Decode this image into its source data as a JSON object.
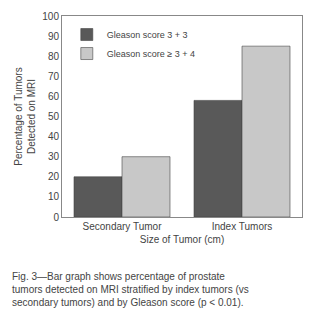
{
  "chart_data": {
    "type": "bar",
    "categories": [
      "Secondary Tumor",
      "Index Tumors"
    ],
    "x_label": "Size of Tumor (cm)",
    "y_label": "Percentage of Tumors\nDetected on MRI",
    "series": [
      {
        "name": "Gleason score 3 + 3",
        "values": [
          20,
          58
        ],
        "color": "#595959"
      },
      {
        "name": "Gleason score ≥ 3 + 4",
        "values": [
          30,
          85
        ],
        "color": "#c8c8c8"
      }
    ],
    "ylim": [
      0,
      100
    ],
    "yticks": [
      0,
      10,
      20,
      30,
      40,
      50,
      60,
      70,
      80,
      90,
      100
    ],
    "grid": false,
    "legend": "upper left",
    "annotations": [
      "Fig. 3—Bar graph shows percentage of prostate",
      "tumors detected on MRI stratified by index tumors (vs",
      "secondary tumors) and by Gleason score (p < 0.01)."
    ]
  }
}
